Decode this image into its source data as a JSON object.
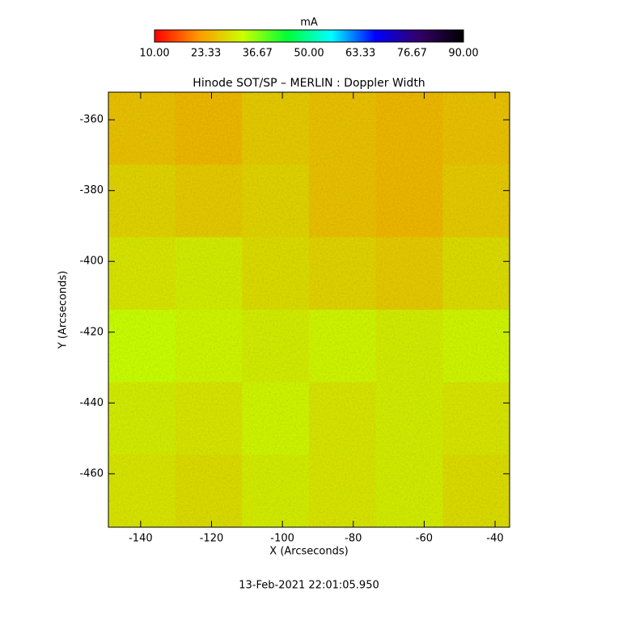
{
  "chart_data": {
    "type": "heatmap",
    "title": "Hinode SOT/SP – MERLIN : Doppler Width",
    "x_label": "X (Arcseconds)",
    "y_label": "Y (Arcseconds)",
    "footer": "13-Feb-2021 22:01:05.950",
    "colorbar_label": "mA",
    "clim": [
      10,
      90
    ],
    "colorbar_ticks": [
      {
        "value": 10,
        "label": "10.00"
      },
      {
        "value": 23.33,
        "label": "23.33"
      },
      {
        "value": 36.67,
        "label": "36.67"
      },
      {
        "value": 50,
        "label": "50.00"
      },
      {
        "value": 63.33,
        "label": "63.33"
      },
      {
        "value": 76.67,
        "label": "76.67"
      },
      {
        "value": 90,
        "label": "90.00"
      }
    ],
    "colormap": [
      "#ff0000",
      "#ff9900",
      "#ccff00",
      "#00ff33",
      "#00ffff",
      "#0000ff",
      "#330066",
      "#000000"
    ],
    "xlim": [
      -149.1,
      -35.9
    ],
    "ylim": [
      -475.1,
      -352.2
    ],
    "xticks": [
      -140,
      -120,
      -100,
      -80,
      -60,
      -40
    ],
    "yticks": [
      -360,
      -380,
      -400,
      -420,
      -440,
      -460
    ],
    "z": [
      [
        26,
        25,
        27,
        26,
        25,
        26
      ],
      [
        28,
        27,
        28,
        26,
        25,
        27
      ],
      [
        30,
        31,
        29,
        28,
        27,
        29
      ],
      [
        33,
        32,
        31,
        32,
        31,
        32
      ],
      [
        31,
        30,
        32,
        30,
        31,
        30
      ],
      [
        30,
        29,
        31,
        30,
        31,
        29
      ]
    ]
  }
}
